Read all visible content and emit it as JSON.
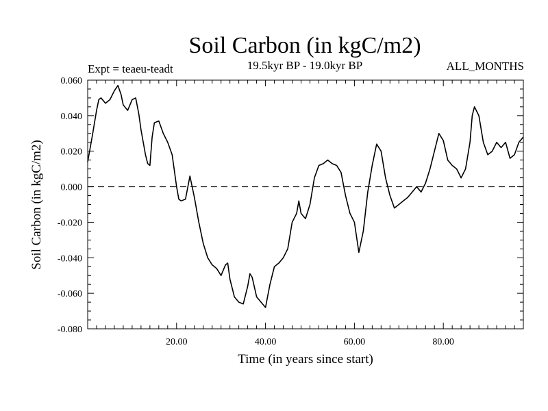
{
  "chart_data": {
    "type": "line",
    "title": "Soil Carbon (in kgC/m2)",
    "subtitle": "19.5kyr BP - 19.0kyr BP",
    "experiment_label": "Expt = teaeu-teadt",
    "period_label": "ALL_MONTHS",
    "xlabel": "Time (in years since start)",
    "ylabel": "Soil Carbon (in kgC/m2)",
    "xlim": [
      0,
      98
    ],
    "ylim": [
      -0.08,
      0.06
    ],
    "x_ticks": [
      20,
      40,
      60,
      80
    ],
    "x_tick_labels": [
      "20.00",
      "40.00",
      "60.00",
      "80.00"
    ],
    "y_ticks": [
      0.06,
      0.04,
      0.02,
      0.0,
      -0.02,
      -0.04,
      -0.06,
      -0.08
    ],
    "y_tick_labels": [
      "0.060",
      "0.040",
      "0.020",
      "0.000",
      "-0.020",
      "-0.040",
      "-0.060",
      "-0.080"
    ],
    "reference_line": {
      "y": 0.0,
      "style": "dashed"
    },
    "grid": false,
    "series": [
      {
        "name": "Soil Carbon",
        "x": [
          0,
          1,
          2,
          2.5,
          3,
          4,
          5,
          6,
          6.8,
          7.5,
          8,
          9,
          10,
          10.8,
          11.5,
          12,
          13,
          13.5,
          14,
          14.5,
          15,
          16,
          17,
          18,
          19,
          20,
          20.5,
          21,
          22,
          23,
          24,
          25,
          26,
          27,
          28,
          29,
          30,
          31,
          31.5,
          32,
          33,
          34,
          35,
          36,
          36.5,
          37,
          38,
          39,
          40,
          41,
          42,
          43,
          44,
          45,
          46,
          47,
          47.5,
          48,
          49,
          50,
          51,
          52,
          53,
          54,
          55,
          56,
          57,
          58,
          59,
          60,
          61,
          62,
          63,
          64,
          65,
          66,
          67,
          68,
          69,
          70,
          71,
          72,
          73,
          74,
          75,
          76,
          77,
          78,
          79,
          80,
          81,
          82,
          83,
          84,
          85,
          86,
          86.5,
          87,
          88,
          89,
          90,
          91,
          92,
          93,
          94,
          95,
          96,
          97,
          98
        ],
        "values": [
          0.014,
          0.028,
          0.043,
          0.049,
          0.05,
          0.047,
          0.049,
          0.054,
          0.057,
          0.052,
          0.046,
          0.043,
          0.049,
          0.05,
          0.041,
          0.032,
          0.018,
          0.013,
          0.012,
          0.028,
          0.036,
          0.037,
          0.03,
          0.025,
          0.018,
          0.0,
          -0.007,
          -0.008,
          -0.007,
          0.006,
          -0.006,
          -0.02,
          -0.032,
          -0.04,
          -0.044,
          -0.046,
          -0.05,
          -0.044,
          -0.043,
          -0.052,
          -0.062,
          -0.065,
          -0.066,
          -0.056,
          -0.049,
          -0.051,
          -0.062,
          -0.065,
          -0.068,
          -0.055,
          -0.045,
          -0.043,
          -0.04,
          -0.035,
          -0.02,
          -0.015,
          -0.008,
          -0.015,
          -0.018,
          -0.01,
          0.005,
          0.012,
          0.013,
          0.015,
          0.013,
          0.012,
          0.008,
          -0.005,
          -0.015,
          -0.02,
          -0.037,
          -0.025,
          -0.003,
          0.012,
          0.024,
          0.02,
          0.005,
          -0.005,
          -0.012,
          -0.01,
          -0.008,
          -0.006,
          -0.003,
          0.0,
          -0.003,
          0.002,
          0.01,
          0.02,
          0.03,
          0.026,
          0.015,
          0.012,
          0.01,
          0.005,
          0.01,
          0.025,
          0.04,
          0.045,
          0.04,
          0.025,
          0.018,
          0.02,
          0.025,
          0.022,
          0.025,
          0.016,
          0.018,
          0.025,
          0.028
        ]
      }
    ]
  }
}
